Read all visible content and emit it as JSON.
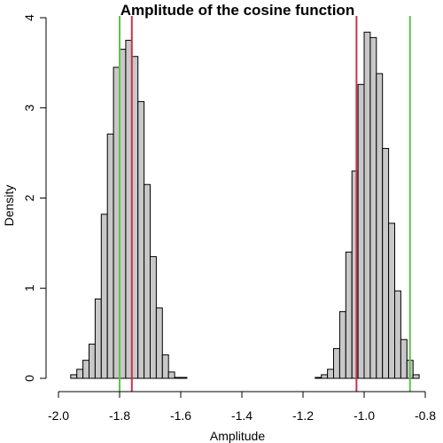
{
  "chart_data": {
    "type": "bar",
    "title": "Amplitude of the cosine function",
    "xlabel": "Amplitude",
    "ylabel": "Density",
    "xlim": [
      -2.0,
      -0.8
    ],
    "ylim": [
      0,
      4
    ],
    "xticks": [
      "-2.0",
      "-1.8",
      "-1.6",
      "-1.4",
      "-1.2",
      "-1.0",
      "-0.8"
    ],
    "yticks": [
      "0",
      "1",
      "2",
      "3",
      "4"
    ],
    "bin_width": 0.02,
    "bin_start": -1.98,
    "densities": [
      0.0,
      0.04,
      0.1,
      0.2,
      0.38,
      0.88,
      1.82,
      2.71,
      3.45,
      3.65,
      3.75,
      3.57,
      3.07,
      2.15,
      1.35,
      0.78,
      0.26,
      0.07,
      0.01,
      0.01,
      0.0,
      0.0,
      0.0,
      0.0,
      0.0,
      0.0,
      0.0,
      0.0,
      0.0,
      0.0,
      0.0,
      0.0,
      0.0,
      0.0,
      0.0,
      0.0,
      0.0,
      0.0,
      0.0,
      0.0,
      0.0,
      0.01,
      0.04,
      0.1,
      0.33,
      0.74,
      1.4,
      2.3,
      3.26,
      3.84,
      3.78,
      3.38,
      2.55,
      1.72,
      0.97,
      0.43,
      0.2,
      0.04
    ],
    "vertical_lines": [
      {
        "x": -1.8,
        "color": "#5ec34a"
      },
      {
        "x": -0.85,
        "color": "#5ec34a"
      },
      {
        "x": -1.76,
        "color": "#c8334a"
      },
      {
        "x": -1.025,
        "color": "#c8334a"
      }
    ],
    "bar_fill": "#c8c8c8",
    "bar_stroke": "#000000"
  }
}
